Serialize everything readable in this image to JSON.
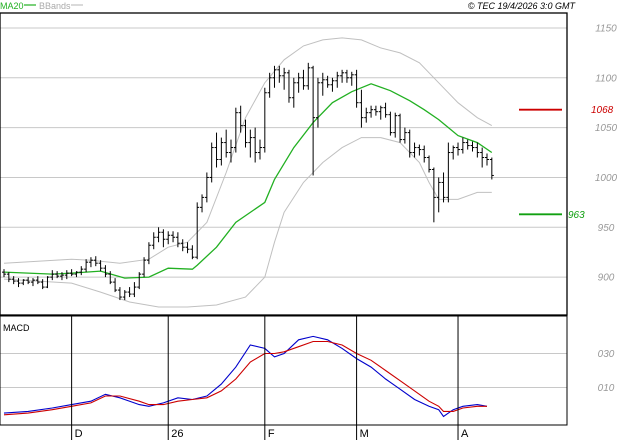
{
  "header": {
    "ma_label": "MA20",
    "bbands_label": "BBands",
    "copyright": "© TEC 19/4/2026 3:0 GMT"
  },
  "colors": {
    "price_bars": "#000000",
    "ma": "#22b022",
    "bbands": "#c0c0c0",
    "grid": "#c8c8c8",
    "resistance": "#cc0000",
    "support": "#11a011",
    "macd_line": "#0000cc",
    "signal_line": "#cc0000",
    "axis_text": "#999999"
  },
  "chart_data": [
    {
      "type": "line",
      "title": "",
      "instrument_style": "OHLC bars with moving average and Bollinger Bands",
      "ylim": [
        862,
        1165
      ],
      "y_ticks": [
        900,
        950,
        1000,
        1050,
        1100,
        1150
      ],
      "y_tick_labels": [
        "900",
        "950",
        "1000",
        "1050",
        "1100",
        "1150"
      ],
      "x_ticks": [
        {
          "label": "D",
          "index": 14
        },
        {
          "label": "26",
          "index": 34
        },
        {
          "label": "F",
          "index": 54
        },
        {
          "label": "M",
          "index": 73
        },
        {
          "label": "A",
          "index": 94
        }
      ],
      "levels": [
        {
          "label": "1068",
          "value": 1068,
          "kind": "resistance"
        },
        {
          "label": "963",
          "value": 963,
          "kind": "support"
        }
      ],
      "ohlc": [
        [
          905,
          908,
          900,
          903
        ],
        [
          903,
          905,
          895,
          898
        ],
        [
          898,
          901,
          893,
          896
        ],
        [
          896,
          899,
          890,
          894
        ],
        [
          894,
          898,
          892,
          897
        ],
        [
          897,
          900,
          893,
          895
        ],
        [
          895,
          899,
          891,
          897
        ],
        [
          897,
          901,
          893,
          895
        ],
        [
          895,
          898,
          888,
          890
        ],
        [
          890,
          901,
          889,
          900
        ],
        [
          900,
          907,
          897,
          903
        ],
        [
          903,
          906,
          899,
          901
        ],
        [
          901,
          905,
          897,
          902
        ],
        [
          902,
          907,
          898,
          904
        ],
        [
          904,
          908,
          901,
          903
        ],
        [
          903,
          906,
          900,
          905
        ],
        [
          905,
          911,
          902,
          908
        ],
        [
          908,
          918,
          905,
          915
        ],
        [
          915,
          920,
          910,
          917
        ],
        [
          917,
          921,
          911,
          914
        ],
        [
          914,
          917,
          906,
          909
        ],
        [
          909,
          912,
          900,
          903
        ],
        [
          903,
          906,
          893,
          895
        ],
        [
          895,
          899,
          885,
          887
        ],
        [
          887,
          890,
          877,
          880
        ],
        [
          880,
          887,
          877,
          885
        ],
        [
          885,
          890,
          880,
          883
        ],
        [
          883,
          895,
          880,
          890
        ],
        [
          890,
          905,
          888,
          903
        ],
        [
          903,
          920,
          900,
          917
        ],
        [
          917,
          935,
          913,
          932
        ],
        [
          932,
          945,
          928,
          940
        ],
        [
          940,
          950,
          935,
          945
        ],
        [
          945,
          948,
          930,
          938
        ],
        [
          938,
          946,
          933,
          942
        ],
        [
          942,
          946,
          935,
          940
        ],
        [
          940,
          945,
          930,
          934
        ],
        [
          934,
          938,
          926,
          930
        ],
        [
          930,
          935,
          924,
          928
        ],
        [
          928,
          932,
          918,
          920
        ],
        [
          920,
          975,
          918,
          970
        ],
        [
          970,
          983,
          965,
          980
        ],
        [
          980,
          1005,
          975,
          1000
        ],
        [
          1000,
          1035,
          995,
          1030
        ],
        [
          1030,
          1045,
          1010,
          1018
        ],
        [
          1018,
          1040,
          1012,
          1035
        ],
        [
          1035,
          1048,
          1020,
          1025
        ],
        [
          1025,
          1038,
          1015,
          1030
        ],
        [
          1030,
          1070,
          1025,
          1065
        ],
        [
          1065,
          1072,
          1045,
          1052
        ],
        [
          1052,
          1058,
          1030,
          1035
        ],
        [
          1035,
          1048,
          1020,
          1040
        ],
        [
          1040,
          1050,
          1015,
          1025
        ],
        [
          1025,
          1038,
          1018,
          1030
        ],
        [
          1030,
          1090,
          1025,
          1085
        ],
        [
          1085,
          1105,
          1080,
          1100
        ],
        [
          1100,
          1112,
          1090,
          1108
        ],
        [
          1108,
          1112,
          1095,
          1102
        ],
        [
          1102,
          1110,
          1088,
          1105
        ],
        [
          1105,
          1108,
          1075,
          1080
        ],
        [
          1080,
          1100,
          1070,
          1095
        ],
        [
          1095,
          1105,
          1085,
          1100
        ],
        [
          1100,
          1108,
          1088,
          1092
        ],
        [
          1092,
          1115,
          1088,
          1110
        ],
        [
          1110,
          1112,
          1002,
          1060
        ],
        [
          1060,
          1100,
          1050,
          1095
        ],
        [
          1095,
          1105,
          1082,
          1098
        ],
        [
          1098,
          1102,
          1090,
          1093
        ],
        [
          1093,
          1100,
          1086,
          1097
        ],
        [
          1097,
          1106,
          1090,
          1102
        ],
        [
          1102,
          1108,
          1095,
          1105
        ],
        [
          1105,
          1108,
          1095,
          1100
        ],
        [
          1100,
          1106,
          1092,
          1103
        ],
        [
          1103,
          1108,
          1070,
          1075
        ],
        [
          1075,
          1088,
          1050,
          1060
        ],
        [
          1060,
          1070,
          1055,
          1065
        ],
        [
          1065,
          1072,
          1060,
          1068
        ],
        [
          1068,
          1072,
          1062,
          1066
        ],
        [
          1066,
          1072,
          1058,
          1070
        ],
        [
          1070,
          1075,
          1060,
          1063
        ],
        [
          1063,
          1066,
          1042,
          1045
        ],
        [
          1045,
          1065,
          1040,
          1062
        ],
        [
          1062,
          1064,
          1035,
          1038
        ],
        [
          1038,
          1050,
          1034,
          1045
        ],
        [
          1045,
          1048,
          1020,
          1025
        ],
        [
          1025,
          1035,
          1020,
          1030
        ],
        [
          1030,
          1033,
          1022,
          1028
        ],
        [
          1028,
          1032,
          1015,
          1020
        ],
        [
          1020,
          1022,
          1005,
          1008
        ],
        [
          1008,
          1010,
          955,
          980
        ],
        [
          980,
          1000,
          965,
          995
        ],
        [
          995,
          1005,
          975,
          980
        ],
        [
          980,
          1035,
          975,
          1025
        ],
        [
          1025,
          1032,
          1018,
          1030
        ],
        [
          1030,
          1035,
          1022,
          1028
        ],
        [
          1028,
          1040,
          1024,
          1035
        ],
        [
          1035,
          1038,
          1028,
          1032
        ],
        [
          1032,
          1036,
          1026,
          1030
        ],
        [
          1030,
          1035,
          1020,
          1025
        ],
        [
          1025,
          1030,
          1010,
          1020
        ],
        [
          1020,
          1024,
          1012,
          1018
        ],
        [
          1018,
          1020,
          998,
          1002
        ]
      ],
      "ma20": [
        [
          0,
          905
        ],
        [
          10,
          903
        ],
        [
          14,
          904
        ],
        [
          20,
          906
        ],
        [
          25,
          899
        ],
        [
          30,
          900
        ],
        [
          34,
          909
        ],
        [
          39,
          908
        ],
        [
          40,
          912
        ],
        [
          44,
          930
        ],
        [
          48,
          955
        ],
        [
          54,
          975
        ],
        [
          56,
          998
        ],
        [
          60,
          1030
        ],
        [
          64,
          1055
        ],
        [
          68,
          1075
        ],
        [
          72,
          1086
        ],
        [
          76,
          1094
        ],
        [
          80,
          1087
        ],
        [
          84,
          1077
        ],
        [
          87,
          1068
        ],
        [
          90,
          1058
        ],
        [
          94,
          1042
        ],
        [
          98,
          1035
        ],
        [
          101,
          1025
        ]
      ],
      "bb_upper": [
        [
          0,
          914
        ],
        [
          14,
          918
        ],
        [
          18,
          917
        ],
        [
          24,
          914
        ],
        [
          30,
          918
        ],
        [
          34,
          930
        ],
        [
          38,
          935
        ],
        [
          42,
          955
        ],
        [
          46,
          1005
        ],
        [
          50,
          1060
        ],
        [
          54,
          1095
        ],
        [
          58,
          1118
        ],
        [
          62,
          1132
        ],
        [
          66,
          1138
        ],
        [
          70,
          1140
        ],
        [
          74,
          1138
        ],
        [
          78,
          1130
        ],
        [
          82,
          1125
        ],
        [
          86,
          1115
        ],
        [
          90,
          1095
        ],
        [
          94,
          1075
        ],
        [
          98,
          1060
        ],
        [
          101,
          1052
        ]
      ],
      "bb_lower": [
        [
          0,
          898
        ],
        [
          14,
          894
        ],
        [
          20,
          885
        ],
        [
          26,
          875
        ],
        [
          32,
          870
        ],
        [
          38,
          870
        ],
        [
          44,
          872
        ],
        [
          50,
          880
        ],
        [
          54,
          900
        ],
        [
          56,
          935
        ],
        [
          58,
          965
        ],
        [
          62,
          995
        ],
        [
          66,
          1015
        ],
        [
          70,
          1030
        ],
        [
          74,
          1040
        ],
        [
          78,
          1040
        ],
        [
          82,
          1035
        ],
        [
          86,
          1015
        ],
        [
          88,
          995
        ],
        [
          90,
          978
        ],
        [
          94,
          978
        ],
        [
          98,
          985
        ],
        [
          101,
          985
        ]
      ],
      "xlim": [
        -0.5,
        113
      ]
    },
    {
      "type": "line",
      "title": "MACD",
      "ylim": [
        -12,
        52
      ],
      "y_ticks": [
        10,
        30
      ],
      "y_tick_labels": [
        "010",
        "030"
      ],
      "series": [
        {
          "name": "",
          "role": "macd",
          "points": [
            [
              0,
              -5
            ],
            [
              5,
              -4
            ],
            [
              10,
              -2
            ],
            [
              14,
              0
            ],
            [
              18,
              2
            ],
            [
              21,
              6
            ],
            [
              24,
              4
            ],
            [
              28,
              0
            ],
            [
              30,
              -1
            ],
            [
              33,
              1
            ],
            [
              36,
              4
            ],
            [
              39,
              3
            ],
            [
              42,
              5
            ],
            [
              45,
              12
            ],
            [
              48,
              22
            ],
            [
              51,
              35
            ],
            [
              54,
              33
            ],
            [
              56,
              28
            ],
            [
              58,
              30
            ],
            [
              61,
              38
            ],
            [
              64,
              40
            ],
            [
              67,
              38
            ],
            [
              70,
              33
            ],
            [
              73,
              27
            ],
            [
              76,
              22
            ],
            [
              79,
              15
            ],
            [
              82,
              9
            ],
            [
              85,
              3
            ],
            [
              88,
              -1
            ],
            [
              90,
              -3
            ],
            [
              91,
              -7
            ],
            [
              93,
              -3
            ],
            [
              95,
              -1
            ],
            [
              98,
              0
            ],
            [
              100,
              -1
            ]
          ]
        },
        {
          "name": "",
          "role": "signal",
          "points": [
            [
              0,
              -6
            ],
            [
              5,
              -5
            ],
            [
              10,
              -3
            ],
            [
              14,
              -1
            ],
            [
              18,
              1
            ],
            [
              21,
              5
            ],
            [
              24,
              5
            ],
            [
              28,
              2
            ],
            [
              30,
              0
            ],
            [
              33,
              0
            ],
            [
              36,
              2
            ],
            [
              39,
              3
            ],
            [
              42,
              4
            ],
            [
              45,
              8
            ],
            [
              48,
              15
            ],
            [
              51,
              25
            ],
            [
              54,
              30
            ],
            [
              56,
              30
            ],
            [
              58,
              31
            ],
            [
              61,
              34
            ],
            [
              64,
              37
            ],
            [
              67,
              37
            ],
            [
              70,
              35
            ],
            [
              73,
              30
            ],
            [
              76,
              26
            ],
            [
              79,
              20
            ],
            [
              82,
              14
            ],
            [
              85,
              8
            ],
            [
              88,
              2
            ],
            [
              90,
              -1
            ],
            [
              91,
              -4
            ],
            [
              93,
              -4
            ],
            [
              95,
              -2
            ],
            [
              98,
              -1
            ],
            [
              100,
              -1
            ]
          ]
        }
      ]
    }
  ]
}
